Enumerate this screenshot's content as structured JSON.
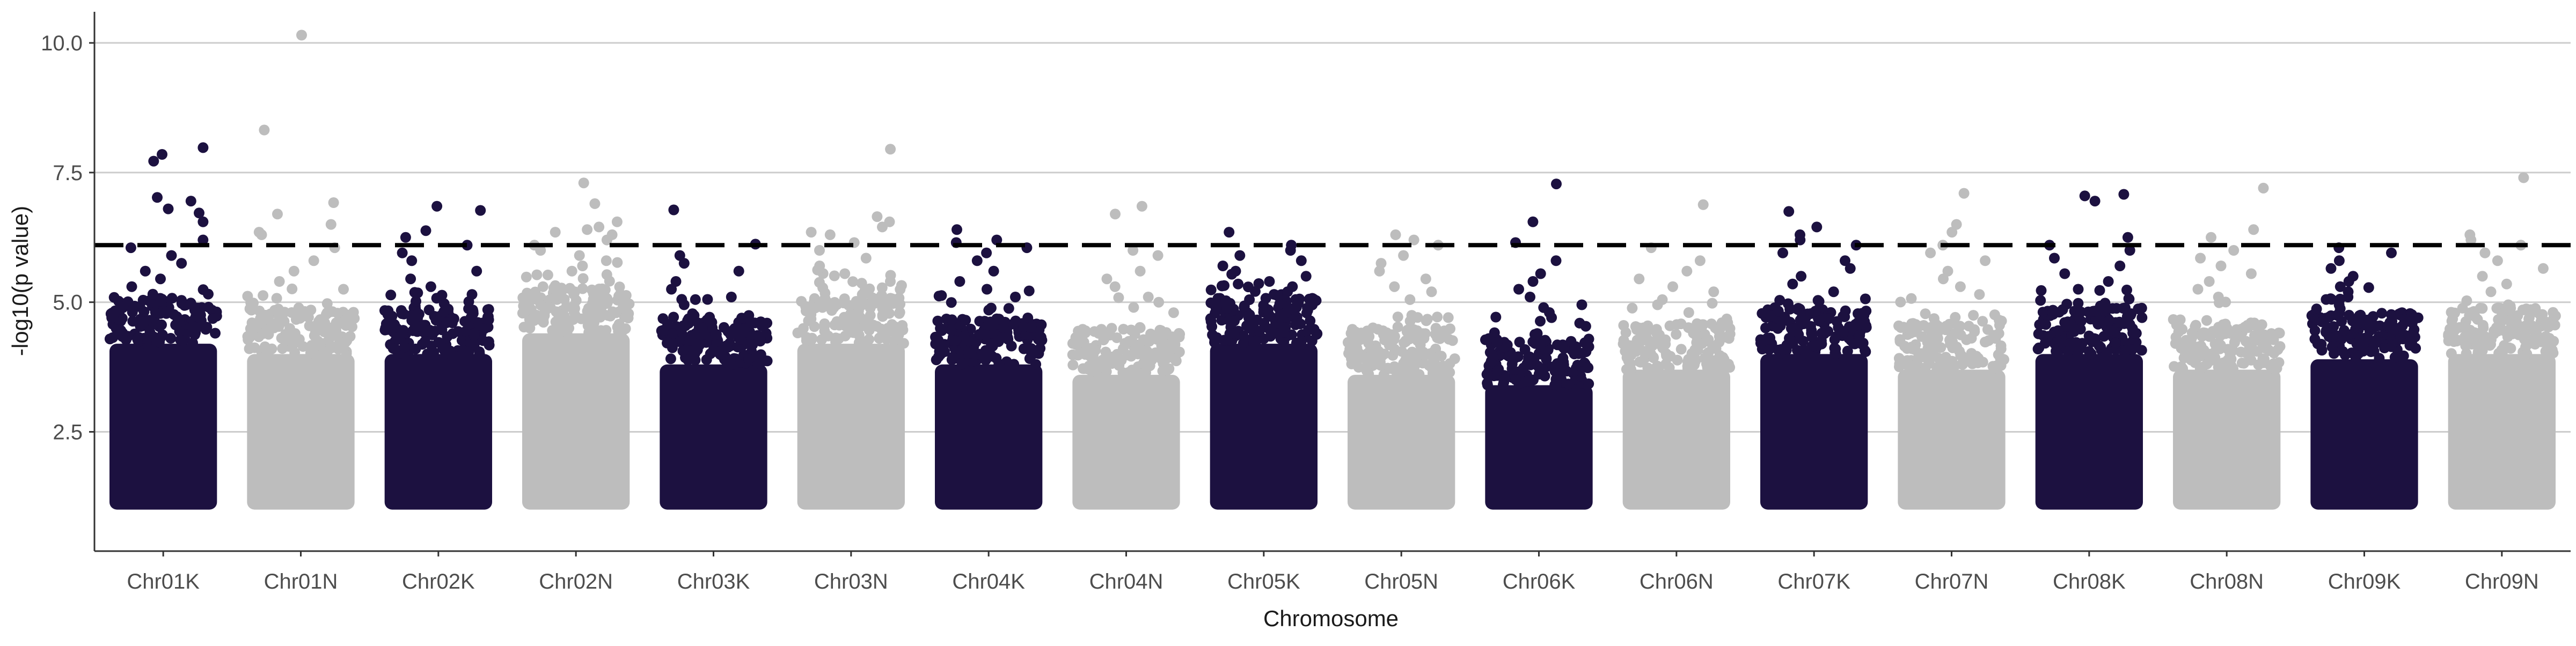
{
  "chart_data": {
    "type": "scatter",
    "subtype": "manhattan",
    "xlabel": "Chromosome",
    "ylabel": "-log10(p value)",
    "ylim": [
      0.2,
      10.6
    ],
    "yticks": [
      2.5,
      5.0,
      7.5,
      10.0
    ],
    "ytick_labels": [
      "2.5",
      "5.0",
      "7.5",
      "10.0"
    ],
    "grid": {
      "horizontal_major": true,
      "vertical": false
    },
    "threshold": {
      "value": 6.1,
      "style": "dashed",
      "color": "#000000"
    },
    "colors": {
      "alternate_a": "#1c1140",
      "alternate_b": "#bdbdbd",
      "grid": "#cccccc",
      "axis": "#333333"
    },
    "categories": [
      "Chr01K",
      "Chr01N",
      "Chr02K",
      "Chr02N",
      "Chr03K",
      "Chr03N",
      "Chr04K",
      "Chr04N",
      "Chr05K",
      "Chr05N",
      "Chr06K",
      "Chr06N",
      "Chr07K",
      "Chr07N",
      "Chr08K",
      "Chr08N",
      "Chr09K",
      "Chr09N"
    ],
    "series": [
      {
        "chromosome": "Chr01K",
        "color": "#1c1140",
        "min": 1.0,
        "bulk_top": 4.8,
        "top_points": [
          7.98,
          7.85,
          7.72,
          7.02,
          6.95,
          6.8,
          6.72,
          6.55,
          6.2,
          6.05,
          5.9,
          5.75,
          5.6,
          5.45,
          5.3
        ]
      },
      {
        "chromosome": "Chr01N",
        "color": "#bdbdbd",
        "min": 1.0,
        "bulk_top": 4.6,
        "top_points": [
          10.15,
          8.32,
          6.92,
          6.7,
          6.5,
          6.35,
          6.3,
          6.05,
          5.8,
          5.6,
          5.4,
          5.25
        ]
      },
      {
        "chromosome": "Chr02K",
        "color": "#1c1140",
        "min": 1.0,
        "bulk_top": 4.6,
        "top_points": [
          6.85,
          6.77,
          6.38,
          6.25,
          6.1,
          5.95,
          5.8,
          5.6,
          5.45,
          5.3,
          5.15
        ]
      },
      {
        "chromosome": "Chr02N",
        "color": "#bdbdbd",
        "min": 1.0,
        "bulk_top": 5.0,
        "top_points": [
          7.3,
          6.9,
          6.55,
          6.45,
          6.4,
          6.35,
          6.3,
          6.2,
          6.1,
          6.0,
          5.9,
          5.8,
          5.7,
          5.6
        ]
      },
      {
        "chromosome": "Chr03K",
        "color": "#1c1140",
        "min": 1.0,
        "bulk_top": 4.4,
        "top_points": [
          6.78,
          6.12,
          5.9,
          5.75,
          5.6,
          5.4,
          5.25,
          5.1,
          4.95
        ]
      },
      {
        "chromosome": "Chr03N",
        "color": "#bdbdbd",
        "min": 1.0,
        "bulk_top": 4.8,
        "top_points": [
          7.95,
          6.65,
          6.55,
          6.45,
          6.35,
          6.3,
          6.15,
          6.0,
          5.85,
          5.7,
          5.55,
          5.4
        ]
      },
      {
        "chromosome": "Chr04K",
        "color": "#1c1140",
        "min": 1.0,
        "bulk_top": 4.4,
        "top_points": [
          6.4,
          6.2,
          6.15,
          6.05,
          5.95,
          5.8,
          5.6,
          5.4,
          5.25,
          5.1
        ]
      },
      {
        "chromosome": "Chr04N",
        "color": "#bdbdbd",
        "min": 1.0,
        "bulk_top": 4.2,
        "top_points": [
          6.85,
          6.7,
          6.0,
          5.9,
          5.6,
          5.45,
          5.3,
          5.1,
          5.0,
          4.9
        ]
      },
      {
        "chromosome": "Chr05K",
        "color": "#1c1140",
        "min": 1.0,
        "bulk_top": 4.8,
        "top_points": [
          6.35,
          6.1,
          6.0,
          5.9,
          5.8,
          5.7,
          5.6,
          5.5,
          5.4,
          5.3
        ]
      },
      {
        "chromosome": "Chr05N",
        "color": "#bdbdbd",
        "min": 1.0,
        "bulk_top": 4.2,
        "top_points": [
          6.3,
          6.2,
          6.1,
          5.9,
          5.75,
          5.6,
          5.45,
          5.3,
          5.2,
          5.05
        ]
      },
      {
        "chromosome": "Chr06K",
        "color": "#1c1140",
        "min": 1.0,
        "bulk_top": 4.0,
        "top_points": [
          7.28,
          6.55,
          6.15,
          5.8,
          5.55,
          5.4,
          5.25,
          5.1,
          4.95,
          4.8
        ]
      },
      {
        "chromosome": "Chr06N",
        "color": "#bdbdbd",
        "min": 1.0,
        "bulk_top": 4.3,
        "top_points": [
          6.88,
          6.05,
          5.8,
          5.6,
          5.45,
          5.3,
          5.2,
          5.05,
          4.95
        ]
      },
      {
        "chromosome": "Chr07K",
        "color": "#1c1140",
        "min": 1.0,
        "bulk_top": 4.6,
        "top_points": [
          6.75,
          6.45,
          6.3,
          6.2,
          6.1,
          5.95,
          5.8,
          5.65,
          5.5,
          5.35,
          5.2
        ]
      },
      {
        "chromosome": "Chr07N",
        "color": "#bdbdbd",
        "min": 1.0,
        "bulk_top": 4.3,
        "top_points": [
          7.1,
          6.5,
          6.35,
          6.1,
          5.95,
          5.8,
          5.6,
          5.45,
          5.3,
          5.15
        ]
      },
      {
        "chromosome": "Chr08K",
        "color": "#1c1140",
        "min": 1.0,
        "bulk_top": 4.6,
        "top_points": [
          7.08,
          7.05,
          6.95,
          6.25,
          6.1,
          6.0,
          5.85,
          5.7,
          5.55,
          5.4,
          5.25
        ]
      },
      {
        "chromosome": "Chr08N",
        "color": "#bdbdbd",
        "min": 1.0,
        "bulk_top": 4.3,
        "top_points": [
          7.2,
          6.4,
          6.25,
          6.0,
          5.85,
          5.7,
          5.55,
          5.4,
          5.25,
          5.1
        ]
      },
      {
        "chromosome": "Chr09K",
        "color": "#1c1140",
        "min": 1.0,
        "bulk_top": 4.5,
        "top_points": [
          6.05,
          5.95,
          5.8,
          5.65,
          5.5,
          5.4,
          5.3,
          5.2,
          5.1
        ]
      },
      {
        "chromosome": "Chr09N",
        "color": "#bdbdbd",
        "min": 1.0,
        "bulk_top": 4.6,
        "top_points": [
          7.4,
          6.3,
          6.2,
          6.1,
          5.95,
          5.8,
          5.65,
          5.5,
          5.35,
          5.2
        ]
      }
    ]
  }
}
